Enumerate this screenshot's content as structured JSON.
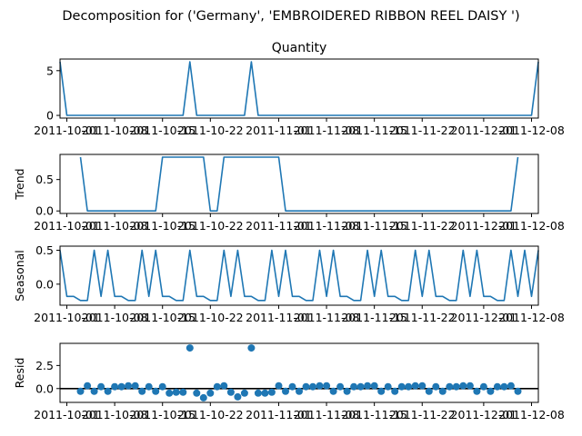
{
  "colors": {
    "line": "#1f77b4",
    "marker": "#1f77b4",
    "zero": "#000000"
  },
  "chart_data": {
    "type": "line",
    "suptitle": "Decomposition for ('Germany', 'EMBROIDERED RIBBON REEL DAISY ')",
    "x_tick_labels": [
      "2011-10-01",
      "2011-10-08",
      "2011-10-15",
      "2011-10-22",
      "2011-11-01",
      "2011-11-08",
      "2011-11-15",
      "2011-11-22",
      "2011-12-01",
      "2011-12-08"
    ],
    "x_tick_positions": [
      1,
      8,
      15,
      22,
      32,
      39,
      46,
      53,
      62,
      69
    ],
    "x_range": [
      0,
      70
    ],
    "panels": [
      {
        "name": "observed",
        "title": "Quantity",
        "ylabel": "",
        "kind": "line",
        "ylim": [
          -0.3,
          6.3
        ],
        "yticks": [
          {
            "v": 0,
            "label": "0"
          },
          {
            "v": 5,
            "label": "5"
          }
        ],
        "x": [
          0,
          1,
          2,
          3,
          4,
          5,
          6,
          7,
          8,
          9,
          10,
          11,
          12,
          13,
          14,
          15,
          16,
          17,
          18,
          19,
          20,
          21,
          22,
          23,
          24,
          25,
          26,
          27,
          28,
          29,
          30,
          31,
          32,
          33,
          34,
          35,
          36,
          37,
          38,
          39,
          40,
          41,
          42,
          43,
          44,
          45,
          46,
          47,
          48,
          49,
          50,
          51,
          52,
          53,
          54,
          55,
          56,
          57,
          58,
          59,
          60,
          61,
          62,
          63,
          64,
          65,
          66,
          67,
          68,
          69,
          70
        ],
        "values": [
          6,
          0,
          0,
          0,
          0,
          0,
          0,
          0,
          0,
          0,
          0,
          0,
          0,
          0,
          0,
          0,
          0,
          0,
          0,
          6,
          0,
          0,
          0,
          0,
          0,
          0,
          0,
          0,
          6,
          0,
          0,
          0,
          0,
          0,
          0,
          0,
          0,
          0,
          0,
          0,
          0,
          0,
          0,
          0,
          0,
          0,
          0,
          0,
          0,
          0,
          0,
          0,
          0,
          0,
          0,
          0,
          0,
          0,
          0,
          0,
          0,
          0,
          0,
          0,
          0,
          0,
          0,
          0,
          0,
          0,
          6
        ]
      },
      {
        "name": "trend",
        "title": "",
        "ylabel": "Trend",
        "kind": "line",
        "ylim": [
          -0.04,
          0.9
        ],
        "yticks": [
          {
            "v": 0,
            "label": "0.0"
          },
          {
            "v": 0.5,
            "label": "0.5"
          }
        ],
        "x": [
          3,
          4,
          5,
          6,
          7,
          8,
          9,
          10,
          11,
          12,
          13,
          14,
          15,
          16,
          17,
          18,
          19,
          20,
          21,
          22,
          23,
          24,
          25,
          26,
          27,
          28,
          29,
          30,
          31,
          32,
          33,
          34,
          35,
          36,
          37,
          38,
          39,
          40,
          41,
          42,
          43,
          44,
          45,
          46,
          47,
          48,
          49,
          50,
          51,
          52,
          53,
          54,
          55,
          56,
          57,
          58,
          59,
          60,
          61,
          62,
          63,
          64,
          65,
          66,
          67
        ],
        "values": [
          0.857,
          0,
          0,
          0,
          0,
          0,
          0,
          0,
          0,
          0,
          0,
          0,
          0.857,
          0.857,
          0.857,
          0.857,
          0.857,
          0.857,
          0.857,
          0,
          0,
          0.857,
          0.857,
          0.857,
          0.857,
          0.857,
          0.857,
          0.857,
          0.857,
          0.857,
          0,
          0,
          0,
          0,
          0,
          0,
          0,
          0,
          0,
          0,
          0,
          0,
          0,
          0,
          0,
          0,
          0,
          0,
          0,
          0,
          0,
          0,
          0,
          0,
          0,
          0,
          0,
          0,
          0,
          0,
          0,
          0,
          0,
          0,
          0.857
        ]
      },
      {
        "name": "seasonal",
        "title": "",
        "ylabel": "Seasonal",
        "kind": "line",
        "ylim": [
          -0.31,
          0.56
        ],
        "yticks": [
          {
            "v": 0,
            "label": "0.0"
          },
          {
            "v": 0.5,
            "label": "0.5"
          }
        ],
        "x": [
          0,
          1,
          2,
          3,
          4,
          5,
          6,
          7,
          8,
          9,
          10,
          11,
          12,
          13,
          14,
          15,
          16,
          17,
          18,
          19,
          20,
          21,
          22,
          23,
          24,
          25,
          26,
          27,
          28,
          29,
          30,
          31,
          32,
          33,
          34,
          35,
          36,
          37,
          38,
          39,
          40,
          41,
          42,
          43,
          44,
          45,
          46,
          47,
          48,
          49,
          50,
          51,
          52,
          53,
          54,
          55,
          56,
          57,
          58,
          59,
          60,
          61,
          62,
          63,
          64,
          65,
          66,
          67,
          68,
          69,
          70
        ],
        "values": [
          0.5,
          -0.18,
          -0.18,
          -0.24,
          -0.24,
          0.5,
          -0.18,
          0.5,
          -0.18,
          -0.18,
          -0.24,
          -0.24,
          0.5,
          -0.18,
          0.5,
          -0.18,
          -0.18,
          -0.24,
          -0.24,
          0.5,
          -0.18,
          -0.18,
          -0.24,
          -0.24,
          0.5,
          -0.18,
          0.5,
          -0.18,
          -0.18,
          -0.24,
          -0.24,
          0.5,
          -0.18,
          0.5,
          -0.18,
          -0.18,
          -0.24,
          -0.24,
          0.5,
          -0.18,
          0.5,
          -0.18,
          -0.18,
          -0.24,
          -0.24,
          0.5,
          -0.18,
          0.5,
          -0.18,
          -0.18,
          -0.24,
          -0.24,
          0.5,
          -0.18,
          0.5,
          -0.18,
          -0.18,
          -0.24,
          -0.24,
          0.5,
          -0.18,
          0.5,
          -0.18,
          -0.18,
          -0.24,
          -0.24,
          0.5,
          -0.18,
          0.5,
          -0.18,
          0.5
        ]
      },
      {
        "name": "resid",
        "title": "",
        "ylabel": "Resid",
        "kind": "scatter",
        "zero_line": true,
        "ylim": [
          -1.5,
          4.9
        ],
        "yticks": [
          {
            "v": 0,
            "label": "0.0"
          },
          {
            "v": 2.5,
            "label": "2.5"
          }
        ],
        "x": [
          3,
          4,
          5,
          6,
          7,
          8,
          9,
          10,
          11,
          12,
          13,
          14,
          15,
          16,
          17,
          18,
          19,
          20,
          21,
          22,
          23,
          24,
          25,
          26,
          27,
          28,
          29,
          30,
          31,
          32,
          33,
          34,
          35,
          36,
          37,
          38,
          39,
          40,
          41,
          42,
          43,
          44,
          45,
          46,
          47,
          48,
          49,
          50,
          51,
          52,
          53,
          54,
          55,
          56,
          57,
          58,
          59,
          60,
          61,
          62,
          63,
          64,
          65,
          66,
          67
        ],
        "values": [
          -0.3,
          0.3,
          -0.3,
          0.2,
          -0.3,
          0.2,
          0.2,
          0.3,
          0.3,
          -0.3,
          0.2,
          -0.3,
          0.2,
          -0.5,
          -0.4,
          -0.4,
          4.4,
          -0.5,
          -1.0,
          -0.5,
          0.2,
          0.3,
          -0.4,
          -0.9,
          -0.5,
          4.4,
          -0.5,
          -0.5,
          -0.4,
          0.3,
          -0.3,
          0.2,
          -0.3,
          0.2,
          0.2,
          0.3,
          0.3,
          -0.3,
          0.2,
          -0.3,
          0.2,
          0.2,
          0.3,
          0.3,
          -0.3,
          0.2,
          -0.3,
          0.2,
          0.2,
          0.3,
          0.3,
          -0.3,
          0.2,
          -0.3,
          0.2,
          0.2,
          0.3,
          0.3,
          -0.3,
          0.2,
          -0.3,
          0.2,
          0.2,
          0.3,
          -0.3
        ]
      }
    ]
  }
}
